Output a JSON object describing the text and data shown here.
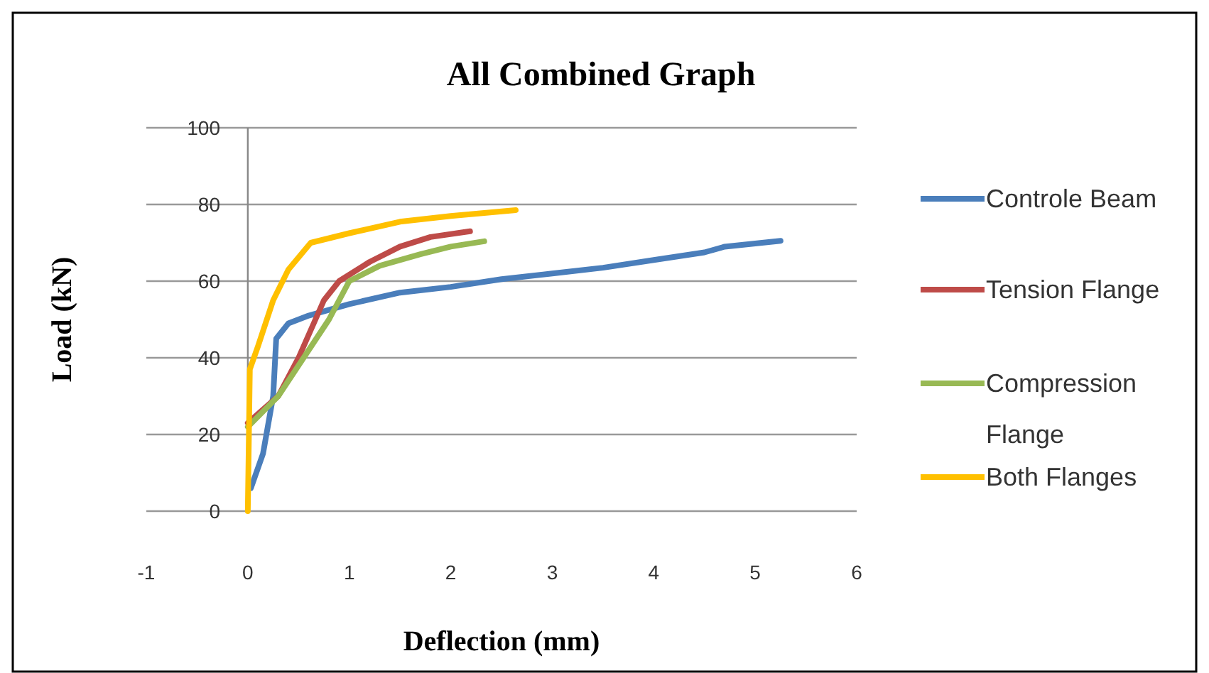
{
  "chart_data": {
    "type": "line",
    "title": "All Combined Graph",
    "xlabel": "Deflection (mm)",
    "ylabel": "Load (kN)",
    "xlim": [
      -1,
      6
    ],
    "xticks": [
      -1,
      0,
      1,
      2,
      3,
      4,
      5,
      6
    ],
    "ylim": [
      0,
      100
    ],
    "yticks": [
      0,
      20,
      40,
      60,
      80,
      100
    ],
    "grid": "y",
    "legend": "right",
    "line_style": "solid",
    "series": [
      {
        "name": "Controle Beam",
        "color": "#4a7ebb",
        "x": [
          0.03,
          0.15,
          0.25,
          0.28,
          0.4,
          0.6,
          1,
          1.5,
          2,
          2.5,
          3,
          3.5,
          4,
          4.5,
          4.7,
          5.25
        ],
        "values": [
          6,
          15,
          30,
          45,
          49,
          51,
          54,
          57,
          58.5,
          60.5,
          62,
          63.5,
          65.5,
          67.5,
          69,
          70.5
        ]
      },
      {
        "name": "Tension Flange",
        "color": "#be4b48",
        "x": [
          0,
          0.3,
          0.5,
          0.75,
          0.9,
          1.2,
          1.5,
          1.8,
          2.19
        ],
        "values": [
          23,
          30,
          40,
          55,
          60,
          65,
          69,
          71.5,
          73
        ]
      },
      {
        "name": "Compression Flange",
        "color": "#98b954",
        "x": [
          0,
          0.3,
          0.55,
          0.8,
          1,
          1.3,
          1.7,
          2,
          2.33
        ],
        "values": [
          22,
          30,
          40,
          50,
          60,
          64,
          67,
          69,
          70.4
        ]
      },
      {
        "name": "Both Flanges",
        "color": "#ffc000",
        "x": [
          0,
          0.02,
          0.1,
          0.25,
          0.4,
          0.62,
          1,
          1.5,
          2,
          2.64
        ],
        "values": [
          0,
          37,
          43,
          55,
          63,
          70,
          72.5,
          75.5,
          77,
          78.5
        ]
      }
    ]
  }
}
